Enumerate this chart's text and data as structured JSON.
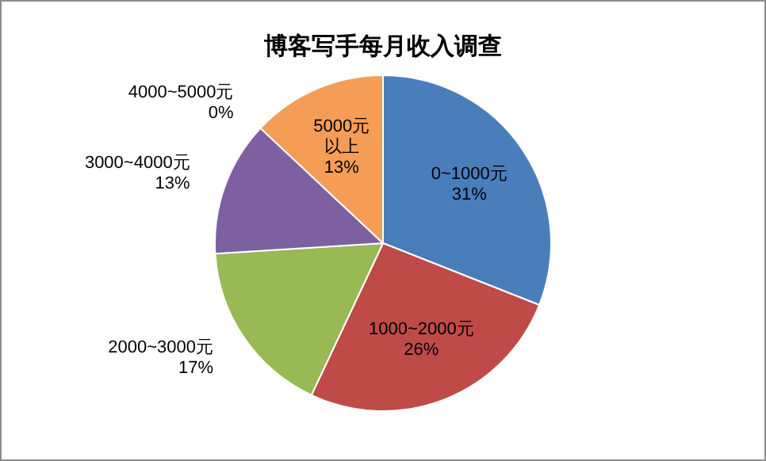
{
  "chart_data": {
    "type": "pie",
    "title": "博客写手每月收入调查",
    "categories": [
      "0~1000元",
      "1000~2000元",
      "2000~3000元",
      "3000~4000元",
      "4000~5000元",
      "5000元以上"
    ],
    "values": [
      31,
      26,
      17,
      13,
      0,
      13
    ],
    "colors": [
      "#4a7ebb",
      "#be4b48",
      "#98b954",
      "#7d60a0",
      "#46aac5",
      "#f59d56"
    ],
    "value_labels": [
      "31%",
      "26%",
      "17%",
      "13%",
      "0%",
      "13%"
    ],
    "legend": false
  }
}
